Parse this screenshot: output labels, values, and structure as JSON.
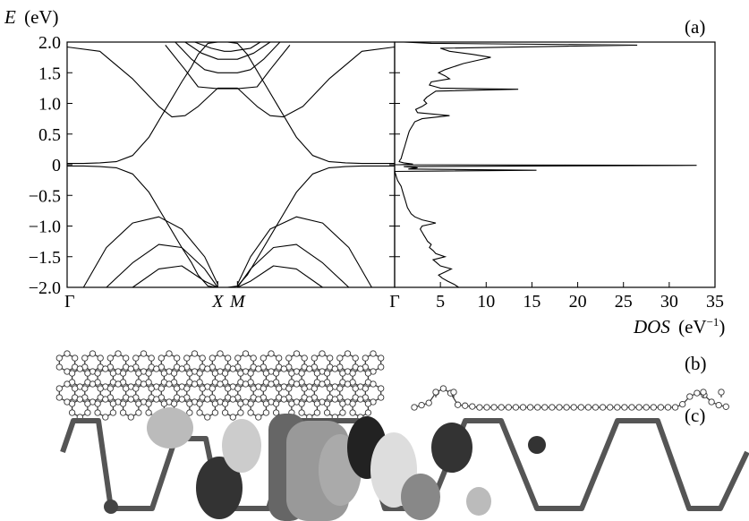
{
  "panel_labels": {
    "a": "(a)",
    "b": "(b)",
    "c": "(c)"
  },
  "chart_data": [
    {
      "type": "line",
      "name": "band structure",
      "ylabel_var": "E",
      "ylabel_unit": "(eV)",
      "ylim": [
        -2.0,
        2.0
      ],
      "yticks": [
        "2.0",
        "1.5",
        "1.0",
        "0.5",
        "0",
        "−0.5",
        "−1.0",
        "−1.5",
        "−2.0"
      ],
      "ytick_values": [
        2.0,
        1.5,
        1.0,
        0.5,
        0,
        -0.5,
        -1.0,
        -1.5,
        -2.0
      ],
      "kpoints": [
        {
          "label": "Γ",
          "k": 0.0,
          "italic": false
        },
        {
          "label": "X",
          "k": 0.46,
          "italic": true
        },
        {
          "label": "M",
          "k": 0.52,
          "italic": true
        },
        {
          "label": "Γ",
          "k": 1.0,
          "italic": false
        }
      ],
      "series": [
        {
          "x": [
            0,
            0.05,
            0.1,
            0.15,
            0.2,
            0.25,
            0.3,
            0.35,
            0.38,
            0.4,
            0.43,
            0.46,
            0.49,
            0.52,
            0.55,
            0.6,
            0.65,
            0.7,
            0.75,
            0.8,
            0.85,
            0.9,
            0.95,
            1.0
          ],
          "y": [
            0.02,
            0.02,
            0.03,
            0.05,
            0.15,
            0.45,
            0.9,
            1.35,
            1.6,
            1.8,
            1.98,
            2.0,
            2.0,
            1.98,
            1.8,
            1.35,
            0.9,
            0.45,
            0.15,
            0.05,
            0.03,
            0.02,
            0.02,
            0.02
          ]
        },
        {
          "x": [
            0,
            0.05,
            0.1,
            0.15,
            0.2,
            0.25,
            0.3,
            0.35,
            0.38,
            0.4,
            0.43,
            0.46,
            0.49,
            0.52,
            0.55,
            0.6,
            0.65,
            0.7,
            0.75,
            0.8,
            0.85,
            0.9,
            0.95,
            1.0
          ],
          "y": [
            -0.02,
            -0.02,
            -0.03,
            -0.05,
            -0.15,
            -0.45,
            -0.9,
            -1.35,
            -1.6,
            -1.8,
            -1.98,
            -2.0,
            -2.0,
            -1.98,
            -1.8,
            -1.35,
            -0.9,
            -0.45,
            -0.15,
            -0.05,
            -0.03,
            -0.02,
            -0.02,
            -0.02
          ]
        },
        {
          "x": [
            0,
            0.1,
            0.2,
            0.28,
            0.32,
            0.36,
            0.4,
            0.46,
            0.52,
            0.58,
            0.62,
            0.66,
            0.72,
            0.8,
            0.9,
            1.0
          ],
          "y": [
            1.92,
            1.85,
            1.4,
            0.95,
            0.78,
            0.8,
            0.95,
            1.25,
            1.25,
            0.95,
            0.8,
            0.78,
            0.95,
            1.4,
            1.85,
            1.92
          ]
        },
        {
          "x": [
            0.3,
            0.36,
            0.4,
            0.46,
            0.52,
            0.58,
            0.62,
            0.68
          ],
          "y": [
            1.95,
            1.55,
            1.27,
            1.24,
            1.24,
            1.27,
            1.55,
            1.95
          ]
        },
        {
          "x": [
            0.33,
            0.38,
            0.42,
            0.46,
            0.52,
            0.56,
            0.6,
            0.65
          ],
          "y": [
            2.0,
            1.72,
            1.55,
            1.5,
            1.5,
            1.55,
            1.72,
            2.0
          ]
        },
        {
          "x": [
            0.36,
            0.41,
            0.46,
            0.52,
            0.57,
            0.62
          ],
          "y": [
            2.0,
            1.82,
            1.72,
            1.72,
            1.82,
            2.0
          ]
        },
        {
          "x": [
            0.39,
            0.44,
            0.48,
            0.5,
            0.56,
            0.59
          ],
          "y": [
            2.0,
            1.9,
            1.85,
            1.85,
            1.9,
            2.0
          ]
        },
        {
          "x": [
            0.05,
            0.12,
            0.2,
            0.28,
            0.35,
            0.42,
            0.46
          ],
          "y": [
            -2.0,
            -1.35,
            -0.95,
            -0.85,
            -1.05,
            -1.5,
            -1.95
          ]
        },
        {
          "x": [
            0.52,
            0.56,
            0.62,
            0.7,
            0.78,
            0.86,
            0.93
          ],
          "y": [
            -1.95,
            -1.5,
            -1.05,
            -0.85,
            -0.95,
            -1.35,
            -2.0
          ]
        },
        {
          "x": [
            0.12,
            0.2,
            0.28,
            0.35,
            0.42,
            0.46
          ],
          "y": [
            -2.0,
            -1.6,
            -1.3,
            -1.35,
            -1.7,
            -2.0
          ]
        },
        {
          "x": [
            0.52,
            0.56,
            0.63,
            0.7,
            0.78,
            0.86
          ],
          "y": [
            -2.0,
            -1.7,
            -1.35,
            -1.3,
            -1.6,
            -2.0
          ]
        },
        {
          "x": [
            0.2,
            0.28,
            0.35,
            0.42,
            0.46
          ],
          "y": [
            -2.0,
            -1.7,
            -1.65,
            -1.9,
            -2.0
          ]
        },
        {
          "x": [
            0.52,
            0.56,
            0.63,
            0.7,
            0.78
          ],
          "y": [
            -2.0,
            -1.9,
            -1.65,
            -1.7,
            -2.0
          ]
        }
      ]
    },
    {
      "type": "line",
      "name": "density of states",
      "xlabel_var": "DOS",
      "xlabel_unit": "(eV",
      "xlabel_sup": "−1",
      "xlabel_close": ")",
      "xlim": [
        0,
        35
      ],
      "ylim": [
        -2.0,
        2.0
      ],
      "xticks": [
        "5",
        "10",
        "15",
        "20",
        "25",
        "30",
        "35"
      ],
      "xtick_values": [
        5,
        10,
        15,
        20,
        25,
        30,
        35
      ],
      "series": [
        {
          "energy": [
            -2.0,
            -1.95,
            -1.9,
            -1.85,
            -1.8,
            -1.75,
            -1.7,
            -1.65,
            -1.6,
            -1.55,
            -1.5,
            -1.45,
            -1.4,
            -1.35,
            -1.3,
            -1.25,
            -1.2,
            -1.15,
            -1.1,
            -1.05,
            -1.0,
            -0.95,
            -0.9,
            -0.85,
            -0.8,
            -0.75,
            -0.7,
            -0.65,
            -0.6,
            -0.55,
            -0.5,
            -0.45,
            -0.4,
            -0.35,
            -0.3,
            -0.25,
            -0.2,
            -0.15,
            -0.11,
            -0.09,
            -0.07,
            -0.05,
            -0.03,
            -0.01,
            0.0,
            0.01,
            0.03,
            0.05,
            0.08,
            0.1,
            0.15,
            0.2,
            0.25,
            0.3,
            0.35,
            0.4,
            0.45,
            0.5,
            0.55,
            0.6,
            0.65,
            0.7,
            0.75,
            0.8,
            0.85,
            0.9,
            0.95,
            1.0,
            1.05,
            1.1,
            1.15,
            1.2,
            1.23,
            1.25,
            1.27,
            1.3,
            1.35,
            1.4,
            1.45,
            1.5,
            1.55,
            1.6,
            1.65,
            1.7,
            1.75,
            1.8,
            1.85,
            1.9,
            1.95,
            1.98,
            2.0
          ],
          "dos": [
            7,
            6.5,
            5.8,
            5.2,
            4.8,
            5.5,
            6.2,
            5,
            4.6,
            4.2,
            5.5,
            4.5,
            4.2,
            3.8,
            4,
            3.6,
            3.4,
            3.2,
            3,
            2.8,
            3,
            4.5,
            3,
            2.2,
            1.8,
            1.6,
            1.4,
            1.3,
            1.2,
            1.1,
            1,
            0.9,
            0.8,
            0.7,
            0.5,
            0.3,
            0.2,
            0.1,
            0,
            15.5,
            1.5,
            2.5,
            1,
            33,
            0.5,
            2,
            1,
            0.5,
            0.6,
            0.7,
            0.8,
            0.9,
            1,
            1.1,
            1.2,
            1.3,
            1.4,
            1.5,
            1.6,
            1.8,
            2,
            2.2,
            3,
            6,
            2.5,
            2.3,
            3,
            3.5,
            3.2,
            3.5,
            4,
            4.5,
            13.5,
            5,
            4.5,
            3.8,
            4,
            6,
            5.5,
            4.8,
            5.5,
            6.5,
            7.5,
            9,
            10.5,
            8.5,
            6,
            5,
            26.5,
            4,
            1
          ]
        }
      ]
    }
  ]
}
